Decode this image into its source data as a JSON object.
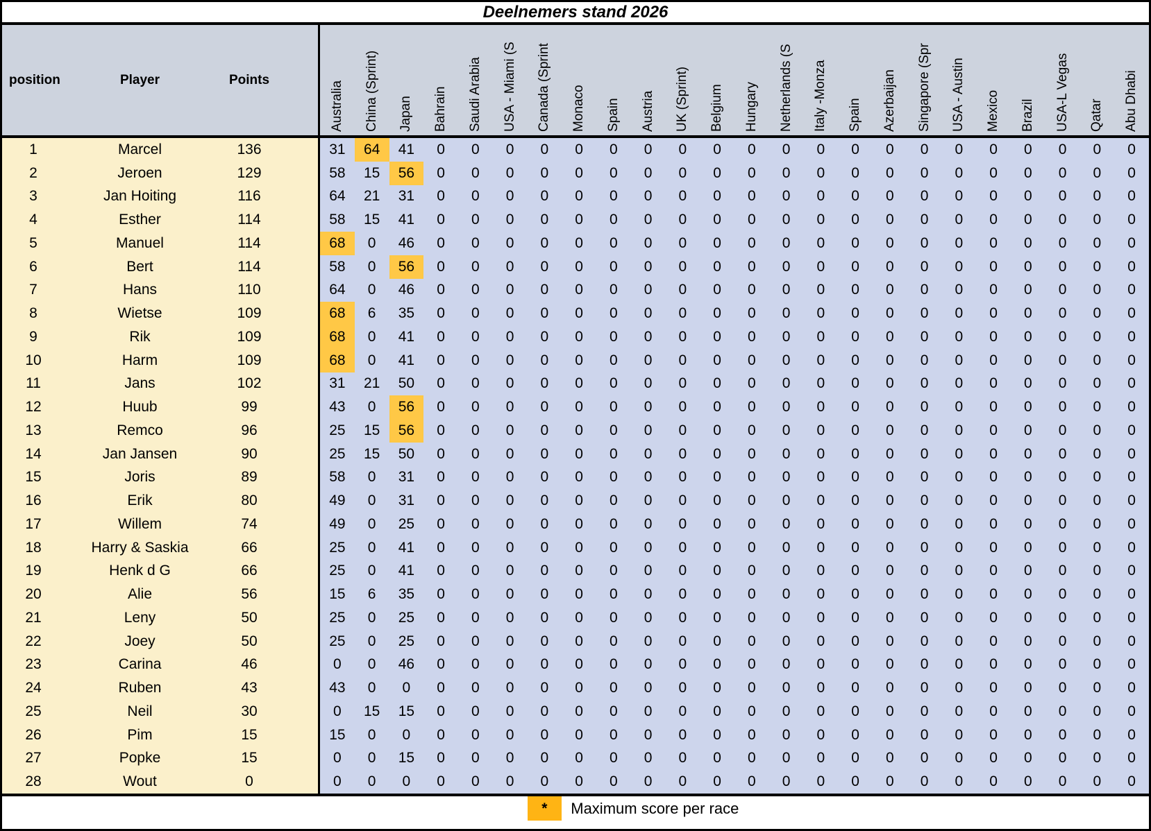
{
  "title": "Deelnemers stand 2026",
  "legend": {
    "symbol": "*",
    "label": "Maximum score per race"
  },
  "colors": {
    "header_bg": "#CDD3DE",
    "left_bg": "#FBF0CB",
    "race_bg": "#CDD5EC",
    "max_highlight": "#FFC846",
    "legend_marker_bg": "#FFB414",
    "border": "#000000"
  },
  "table": {
    "left_headers": [
      "position",
      "Player",
      "Points"
    ],
    "race_headers": [
      "Australia",
      "China (Sprint)",
      "Japan",
      "Bahrain",
      "Saudi Arabia",
      "USA - Miami (S",
      "Canada (Sprint",
      "Monaco",
      "Spain",
      "Austria",
      "UK (Sprint)",
      "Belgium",
      "Hungary",
      "Netherlands (S",
      "Italy -Monza",
      "Spain",
      "Azerbaijan",
      "Singapore (Spr",
      "USA - Austin",
      "Mexico",
      "Brazil",
      "USA-L Vegas",
      "Qatar",
      "Abu Dhabi"
    ],
    "rows": [
      {
        "position": "1",
        "player": "Marcel",
        "points": "136",
        "max_cols": [
          1
        ],
        "scores": [
          31,
          64,
          41,
          0,
          0,
          0,
          0,
          0,
          0,
          0,
          0,
          0,
          0,
          0,
          0,
          0,
          0,
          0,
          0,
          0,
          0,
          0,
          0,
          0
        ]
      },
      {
        "position": "2",
        "player": "Jeroen",
        "points": "129",
        "max_cols": [
          2
        ],
        "scores": [
          58,
          15,
          56,
          0,
          0,
          0,
          0,
          0,
          0,
          0,
          0,
          0,
          0,
          0,
          0,
          0,
          0,
          0,
          0,
          0,
          0,
          0,
          0,
          0
        ]
      },
      {
        "position": "3",
        "player": "Jan Hoiting",
        "points": "116",
        "max_cols": [],
        "scores": [
          64,
          21,
          31,
          0,
          0,
          0,
          0,
          0,
          0,
          0,
          0,
          0,
          0,
          0,
          0,
          0,
          0,
          0,
          0,
          0,
          0,
          0,
          0,
          0
        ]
      },
      {
        "position": "4",
        "player": "Esther",
        "points": "114",
        "max_cols": [],
        "scores": [
          58,
          15,
          41,
          0,
          0,
          0,
          0,
          0,
          0,
          0,
          0,
          0,
          0,
          0,
          0,
          0,
          0,
          0,
          0,
          0,
          0,
          0,
          0,
          0
        ]
      },
      {
        "position": "5",
        "player": "Manuel",
        "points": "114",
        "max_cols": [
          0
        ],
        "scores": [
          68,
          0,
          46,
          0,
          0,
          0,
          0,
          0,
          0,
          0,
          0,
          0,
          0,
          0,
          0,
          0,
          0,
          0,
          0,
          0,
          0,
          0,
          0,
          0
        ]
      },
      {
        "position": "6",
        "player": "Bert",
        "points": "114",
        "max_cols": [
          2
        ],
        "scores": [
          58,
          0,
          56,
          0,
          0,
          0,
          0,
          0,
          0,
          0,
          0,
          0,
          0,
          0,
          0,
          0,
          0,
          0,
          0,
          0,
          0,
          0,
          0,
          0
        ]
      },
      {
        "position": "7",
        "player": "Hans",
        "points": "110",
        "max_cols": [],
        "scores": [
          64,
          0,
          46,
          0,
          0,
          0,
          0,
          0,
          0,
          0,
          0,
          0,
          0,
          0,
          0,
          0,
          0,
          0,
          0,
          0,
          0,
          0,
          0,
          0
        ]
      },
      {
        "position": "8",
        "player": "Wietse",
        "points": "109",
        "max_cols": [
          0
        ],
        "scores": [
          68,
          6,
          35,
          0,
          0,
          0,
          0,
          0,
          0,
          0,
          0,
          0,
          0,
          0,
          0,
          0,
          0,
          0,
          0,
          0,
          0,
          0,
          0,
          0
        ]
      },
      {
        "position": "9",
        "player": "Rik",
        "points": "109",
        "max_cols": [
          0
        ],
        "scores": [
          68,
          0,
          41,
          0,
          0,
          0,
          0,
          0,
          0,
          0,
          0,
          0,
          0,
          0,
          0,
          0,
          0,
          0,
          0,
          0,
          0,
          0,
          0,
          0
        ]
      },
      {
        "position": "10",
        "player": "Harm",
        "points": "109",
        "max_cols": [
          0
        ],
        "scores": [
          68,
          0,
          41,
          0,
          0,
          0,
          0,
          0,
          0,
          0,
          0,
          0,
          0,
          0,
          0,
          0,
          0,
          0,
          0,
          0,
          0,
          0,
          0,
          0
        ]
      },
      {
        "position": "11",
        "player": "Jans",
        "points": "102",
        "max_cols": [],
        "scores": [
          31,
          21,
          50,
          0,
          0,
          0,
          0,
          0,
          0,
          0,
          0,
          0,
          0,
          0,
          0,
          0,
          0,
          0,
          0,
          0,
          0,
          0,
          0,
          0
        ]
      },
      {
        "position": "12",
        "player": "Huub",
        "points": "99",
        "max_cols": [
          2
        ],
        "scores": [
          43,
          0,
          56,
          0,
          0,
          0,
          0,
          0,
          0,
          0,
          0,
          0,
          0,
          0,
          0,
          0,
          0,
          0,
          0,
          0,
          0,
          0,
          0,
          0
        ]
      },
      {
        "position": "13",
        "player": "Remco",
        "points": "96",
        "max_cols": [
          2
        ],
        "scores": [
          25,
          15,
          56,
          0,
          0,
          0,
          0,
          0,
          0,
          0,
          0,
          0,
          0,
          0,
          0,
          0,
          0,
          0,
          0,
          0,
          0,
          0,
          0,
          0
        ]
      },
      {
        "position": "14",
        "player": "Jan Jansen",
        "points": "90",
        "max_cols": [],
        "scores": [
          25,
          15,
          50,
          0,
          0,
          0,
          0,
          0,
          0,
          0,
          0,
          0,
          0,
          0,
          0,
          0,
          0,
          0,
          0,
          0,
          0,
          0,
          0,
          0
        ]
      },
      {
        "position": "15",
        "player": "Joris",
        "points": "89",
        "max_cols": [],
        "scores": [
          58,
          0,
          31,
          0,
          0,
          0,
          0,
          0,
          0,
          0,
          0,
          0,
          0,
          0,
          0,
          0,
          0,
          0,
          0,
          0,
          0,
          0,
          0,
          0
        ]
      },
      {
        "position": "16",
        "player": "Erik",
        "points": "80",
        "max_cols": [],
        "scores": [
          49,
          0,
          31,
          0,
          0,
          0,
          0,
          0,
          0,
          0,
          0,
          0,
          0,
          0,
          0,
          0,
          0,
          0,
          0,
          0,
          0,
          0,
          0,
          0
        ]
      },
      {
        "position": "17",
        "player": "Willem",
        "points": "74",
        "max_cols": [],
        "scores": [
          49,
          0,
          25,
          0,
          0,
          0,
          0,
          0,
          0,
          0,
          0,
          0,
          0,
          0,
          0,
          0,
          0,
          0,
          0,
          0,
          0,
          0,
          0,
          0
        ]
      },
      {
        "position": "18",
        "player": "Harry & Saskia",
        "points": "66",
        "max_cols": [],
        "scores": [
          25,
          0,
          41,
          0,
          0,
          0,
          0,
          0,
          0,
          0,
          0,
          0,
          0,
          0,
          0,
          0,
          0,
          0,
          0,
          0,
          0,
          0,
          0,
          0
        ]
      },
      {
        "position": "19",
        "player": "Henk d G",
        "points": "66",
        "max_cols": [],
        "scores": [
          25,
          0,
          41,
          0,
          0,
          0,
          0,
          0,
          0,
          0,
          0,
          0,
          0,
          0,
          0,
          0,
          0,
          0,
          0,
          0,
          0,
          0,
          0,
          0
        ]
      },
      {
        "position": "20",
        "player": "Alie",
        "points": "56",
        "max_cols": [],
        "scores": [
          15,
          6,
          35,
          0,
          0,
          0,
          0,
          0,
          0,
          0,
          0,
          0,
          0,
          0,
          0,
          0,
          0,
          0,
          0,
          0,
          0,
          0,
          0,
          0
        ]
      },
      {
        "position": "21",
        "player": "Leny",
        "points": "50",
        "max_cols": [],
        "scores": [
          25,
          0,
          25,
          0,
          0,
          0,
          0,
          0,
          0,
          0,
          0,
          0,
          0,
          0,
          0,
          0,
          0,
          0,
          0,
          0,
          0,
          0,
          0,
          0
        ]
      },
      {
        "position": "22",
        "player": "Joey",
        "points": "50",
        "max_cols": [],
        "scores": [
          25,
          0,
          25,
          0,
          0,
          0,
          0,
          0,
          0,
          0,
          0,
          0,
          0,
          0,
          0,
          0,
          0,
          0,
          0,
          0,
          0,
          0,
          0,
          0
        ]
      },
      {
        "position": "23",
        "player": "Carina",
        "points": "46",
        "max_cols": [],
        "scores": [
          0,
          0,
          46,
          0,
          0,
          0,
          0,
          0,
          0,
          0,
          0,
          0,
          0,
          0,
          0,
          0,
          0,
          0,
          0,
          0,
          0,
          0,
          0,
          0
        ]
      },
      {
        "position": "24",
        "player": "Ruben",
        "points": "43",
        "max_cols": [],
        "scores": [
          43,
          0,
          0,
          0,
          0,
          0,
          0,
          0,
          0,
          0,
          0,
          0,
          0,
          0,
          0,
          0,
          0,
          0,
          0,
          0,
          0,
          0,
          0,
          0
        ]
      },
      {
        "position": "25",
        "player": "Neil",
        "points": "30",
        "max_cols": [],
        "scores": [
          0,
          15,
          15,
          0,
          0,
          0,
          0,
          0,
          0,
          0,
          0,
          0,
          0,
          0,
          0,
          0,
          0,
          0,
          0,
          0,
          0,
          0,
          0,
          0
        ]
      },
      {
        "position": "26",
        "player": "Pim",
        "points": "15",
        "max_cols": [],
        "scores": [
          15,
          0,
          0,
          0,
          0,
          0,
          0,
          0,
          0,
          0,
          0,
          0,
          0,
          0,
          0,
          0,
          0,
          0,
          0,
          0,
          0,
          0,
          0,
          0
        ]
      },
      {
        "position": "27",
        "player": "Popke",
        "points": "15",
        "max_cols": [],
        "scores": [
          0,
          0,
          15,
          0,
          0,
          0,
          0,
          0,
          0,
          0,
          0,
          0,
          0,
          0,
          0,
          0,
          0,
          0,
          0,
          0,
          0,
          0,
          0,
          0
        ]
      },
      {
        "position": "28",
        "player": "Wout",
        "points": "0",
        "max_cols": [],
        "scores": [
          0,
          0,
          0,
          0,
          0,
          0,
          0,
          0,
          0,
          0,
          0,
          0,
          0,
          0,
          0,
          0,
          0,
          0,
          0,
          0,
          0,
          0,
          0,
          0
        ]
      }
    ]
  }
}
